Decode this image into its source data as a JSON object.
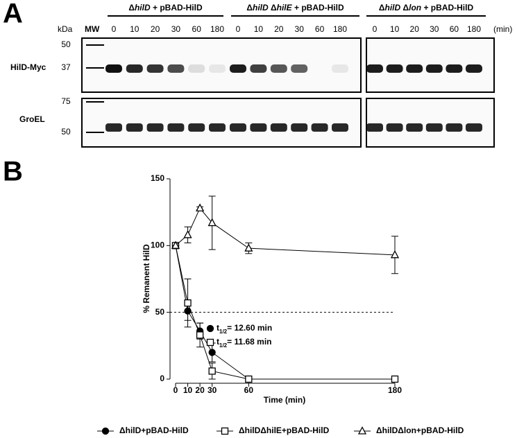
{
  "panel_a": {
    "label": "A",
    "kda_label": "kDa",
    "mw_label": "MW",
    "unit_label": "(min)",
    "groups": [
      {
        "title": [
          {
            "text": "Δ"
          },
          {
            "text": "hilD",
            "italic": true
          },
          {
            "text": " + pBAD-HilD"
          }
        ],
        "lanes": [
          0,
          10,
          20,
          30,
          60,
          180
        ]
      },
      {
        "title": [
          {
            "text": "Δ"
          },
          {
            "text": "hilD",
            "italic": true
          },
          {
            "text": " Δ"
          },
          {
            "text": "hilE",
            "italic": true
          },
          {
            "text": " + pBAD-HilD"
          }
        ],
        "lanes": [
          0,
          10,
          20,
          30,
          60,
          180
        ]
      },
      {
        "title": [
          {
            "text": "Δ"
          },
          {
            "text": "hilD",
            "italic": true
          },
          {
            "text": " Δ"
          },
          {
            "text": "lon",
            "italic": true
          },
          {
            "text": " + pBAD-HilD"
          }
        ],
        "lanes": [
          0,
          10,
          20,
          30,
          60,
          180
        ]
      }
    ],
    "blots": [
      {
        "name": "HilD-Myc",
        "markers": [
          50,
          37
        ]
      },
      {
        "name": "GroEL",
        "markers": [
          75,
          50
        ]
      }
    ]
  },
  "chart_data": {
    "type": "line",
    "panel_label": "B",
    "x_label": "Time (min)",
    "y_label": "% Remanent HilD",
    "x": [
      0,
      10,
      20,
      30,
      60,
      180
    ],
    "xlim": [
      0,
      180
    ],
    "xticks": [
      0,
      10,
      20,
      30,
      60,
      180
    ],
    "ylim": [
      0,
      150
    ],
    "yticks": [
      0,
      50,
      100,
      150
    ],
    "reference_line": 50,
    "series": [
      {
        "name": "ΔhilD+pBAD-HilD",
        "color": "#000000",
        "marker": "circle",
        "filled": true,
        "values": [
          100,
          51,
          36,
          20,
          0,
          0
        ],
        "errors": [
          0,
          7,
          6,
          7,
          0,
          0
        ]
      },
      {
        "name": "ΔhilDΔhilE+pBAD-HilD",
        "color": "#000000",
        "marker": "square",
        "filled": false,
        "values": [
          100,
          57,
          33,
          6,
          0,
          0
        ],
        "errors": [
          0,
          18,
          9,
          6,
          0,
          0
        ]
      },
      {
        "name": "ΔhilDΔlon+pBAD-HilD",
        "color": "#000000",
        "marker": "triangle",
        "filled": false,
        "values": [
          100,
          108,
          128,
          117,
          98,
          93
        ],
        "errors": [
          0,
          6,
          1,
          20,
          4,
          14
        ]
      }
    ],
    "annotations": [
      {
        "series": 0,
        "parts": [
          "t",
          "1/2",
          "= 12.60 min"
        ]
      },
      {
        "series": 1,
        "parts": [
          "t",
          "1/2",
          "= 11.68 min"
        ]
      }
    ]
  }
}
